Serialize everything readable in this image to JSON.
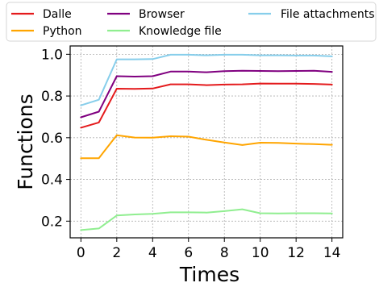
{
  "chart_data": {
    "type": "line",
    "title": "",
    "xlabel": "Times",
    "ylabel": "Functions",
    "x": [
      0,
      1,
      2,
      3,
      4,
      5,
      6,
      7,
      8,
      9,
      10,
      11,
      12,
      13,
      14
    ],
    "xlim": [
      -0.6,
      14.6
    ],
    "ylim": [
      0.12,
      1.04
    ],
    "xticks": [
      0,
      2,
      4,
      6,
      8,
      10,
      12,
      14
    ],
    "yticks": [
      0.2,
      0.4,
      0.6,
      0.8,
      1.0
    ],
    "xtick_labels": [
      "0",
      "2",
      "4",
      "6",
      "8",
      "10",
      "12",
      "14"
    ],
    "ytick_labels": [
      "0.2",
      "0.4",
      "0.6",
      "0.8",
      "1.0"
    ],
    "grid": true,
    "legend_position": "top",
    "series": [
      {
        "name": "Dalle",
        "color": "#e41a1c",
        "values": [
          0.648,
          0.673,
          0.835,
          0.834,
          0.836,
          0.856,
          0.856,
          0.852,
          0.855,
          0.856,
          0.86,
          0.859,
          0.859,
          0.858,
          0.855
        ]
      },
      {
        "name": "Python",
        "color": "#ffa500",
        "values": [
          0.502,
          0.502,
          0.612,
          0.601,
          0.6,
          0.607,
          0.605,
          0.59,
          0.577,
          0.565,
          0.576,
          0.575,
          0.572,
          0.569,
          0.566
        ]
      },
      {
        "name": "Browser",
        "color": "#800080",
        "values": [
          0.698,
          0.725,
          0.895,
          0.893,
          0.895,
          0.917,
          0.917,
          0.914,
          0.919,
          0.921,
          0.92,
          0.919,
          0.92,
          0.921,
          0.916
        ]
      },
      {
        "name": "Knowledge file",
        "color": "#90ee90",
        "values": [
          0.157,
          0.165,
          0.227,
          0.232,
          0.235,
          0.242,
          0.242,
          0.241,
          0.248,
          0.257,
          0.238,
          0.237,
          0.238,
          0.238,
          0.237
        ]
      },
      {
        "name": "File attachments",
        "color": "#87ceeb",
        "values": [
          0.755,
          0.782,
          0.976,
          0.976,
          0.977,
          0.998,
          0.998,
          0.995,
          0.998,
          0.998,
          0.995,
          0.995,
          0.994,
          0.994,
          0.99
        ]
      }
    ]
  }
}
